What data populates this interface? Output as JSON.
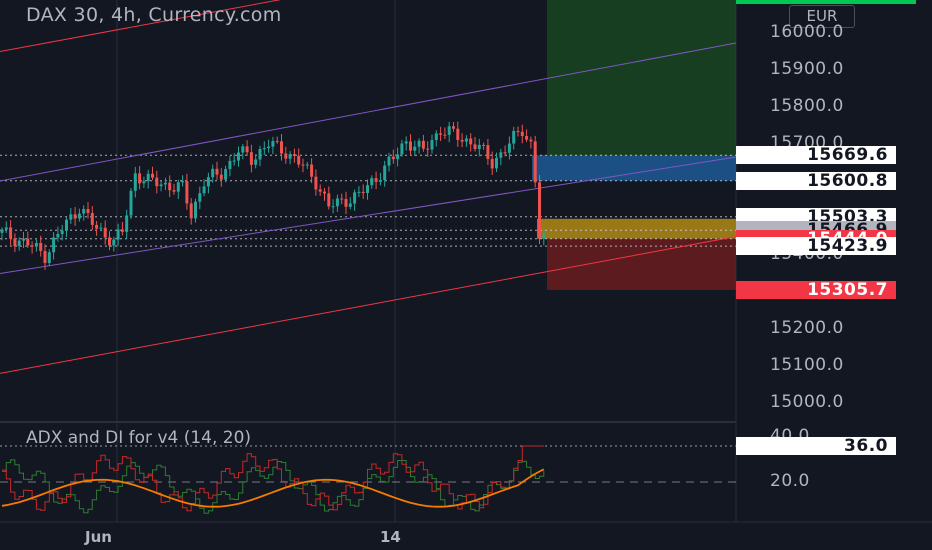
{
  "header": {
    "title": "DAX 30, 4h, Currency.com",
    "currency": "EUR"
  },
  "indicator": {
    "title": "ADX and DI for v4 (14, 20)",
    "axis_labels": [
      "40.0",
      "20.0"
    ],
    "last_value": "36.0"
  },
  "price_axis": {
    "labels": [
      "16000.0",
      "15900.0",
      "15800.0",
      "15700.0",
      "15500.0",
      "15400.0",
      "15300.0",
      "15200.0",
      "15100.0",
      "15000.0"
    ]
  },
  "price_tags": [
    {
      "label": "15669.6",
      "price": 15669.6,
      "style": "white"
    },
    {
      "label": "15600.8",
      "price": 15600.8,
      "style": "white"
    },
    {
      "label": "15503.3",
      "price": 15503.3,
      "style": "white"
    },
    {
      "label": "15466.9",
      "price": 15466.9,
      "style": "gray"
    },
    {
      "label": "15444.0",
      "price": 15444.0,
      "style": "red"
    },
    {
      "label": "15423.9",
      "price": 15423.9,
      "style": "white"
    },
    {
      "label": "15305.7",
      "price": 15305.7,
      "style": "red"
    }
  ],
  "time_axis": {
    "labels": [
      "Jun",
      "14"
    ]
  },
  "colors": {
    "background": "#131722",
    "up": "#26a69a",
    "down": "#ef5350",
    "channel": "#7e57c2",
    "trendline": "#f23645",
    "long_target_zone": "#1b5e20",
    "long_entry_zone": "#1e5a96",
    "short_target_zone": "#7a1e1e",
    "entry_zone": "#c79a14",
    "adx_line": "#f57c00",
    "di_plus": "#2e7d32",
    "di_minus": "#c62828"
  },
  "chart_data": {
    "type": "candlestick",
    "title": "DAX 30, 4h, Currency.com",
    "ylim": [
      14930,
      16040
    ],
    "levels": [
      15669.6,
      15600.8,
      15503.3,
      15466.9,
      15444.0,
      15423.9,
      15305.7
    ],
    "close_path": [
      [
        0,
        15460
      ],
      [
        6,
        15430
      ],
      [
        10,
        15400
      ],
      [
        14,
        15470
      ],
      [
        18,
        15530
      ],
      [
        22,
        15470
      ],
      [
        26,
        15440
      ],
      [
        28,
        15460
      ],
      [
        31,
        15620
      ],
      [
        34,
        15600
      ],
      [
        38,
        15590
      ],
      [
        42,
        15580
      ],
      [
        44,
        15510
      ],
      [
        47,
        15600
      ],
      [
        51,
        15620
      ],
      [
        55,
        15680
      ],
      [
        58,
        15660
      ],
      [
        62,
        15700
      ],
      [
        66,
        15680
      ],
      [
        70,
        15640
      ],
      [
        73,
        15600
      ],
      [
        76,
        15530
      ],
      [
        80,
        15550
      ],
      [
        83,
        15560
      ],
      [
        87,
        15610
      ],
      [
        91,
        15660
      ],
      [
        94,
        15710
      ],
      [
        98,
        15680
      ],
      [
        102,
        15740
      ],
      [
        106,
        15720
      ],
      [
        110,
        15700
      ],
      [
        114,
        15650
      ],
      [
        118,
        15700
      ],
      [
        121,
        15740
      ],
      [
        123,
        15700
      ],
      [
        124,
        15600
      ],
      [
        125,
        15450
      ],
      [
        126,
        15440
      ]
    ],
    "adx": {
      "levels": [
        40.0,
        20.0
      ],
      "last": 36.0
    }
  }
}
